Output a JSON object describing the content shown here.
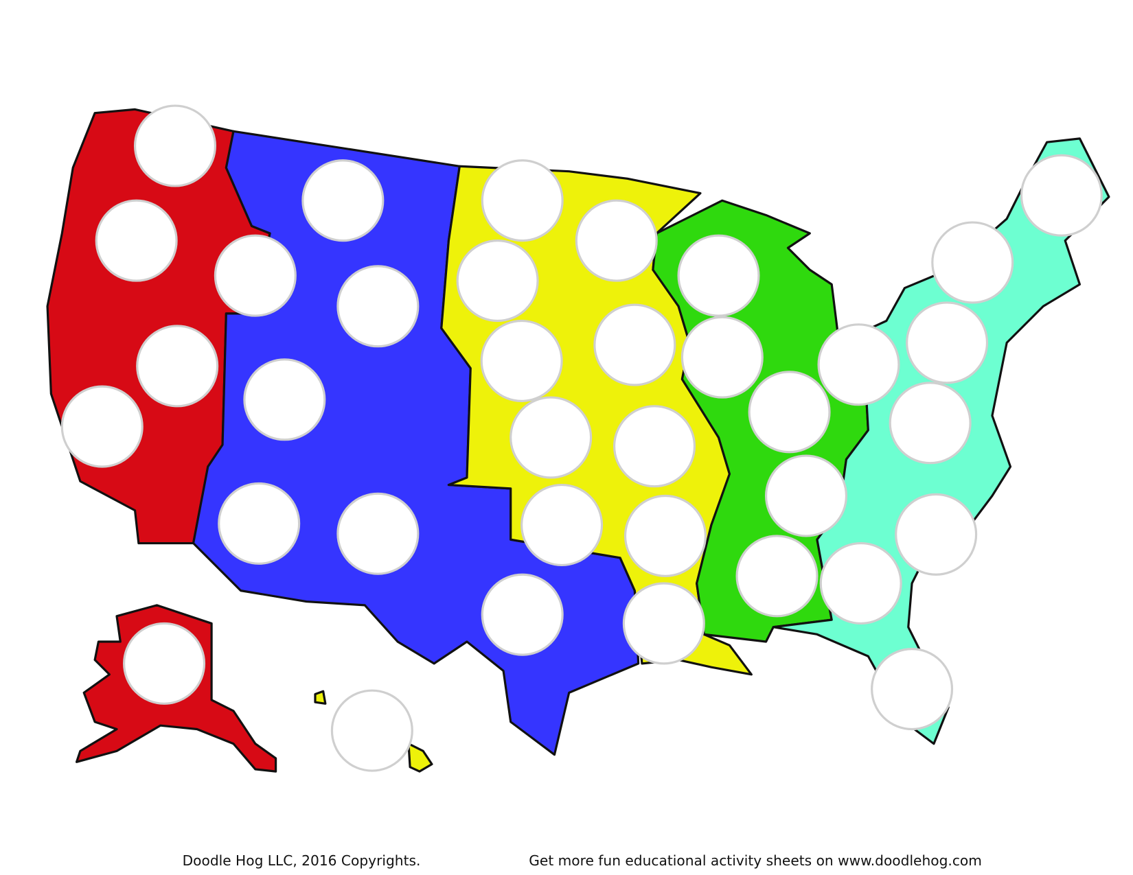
{
  "footer": {
    "copyright": "Doodle Hog LLC, 2016 Copyrights.",
    "promo": "Get more fun educational activity sheets on www.doodlehog.com"
  }
}
